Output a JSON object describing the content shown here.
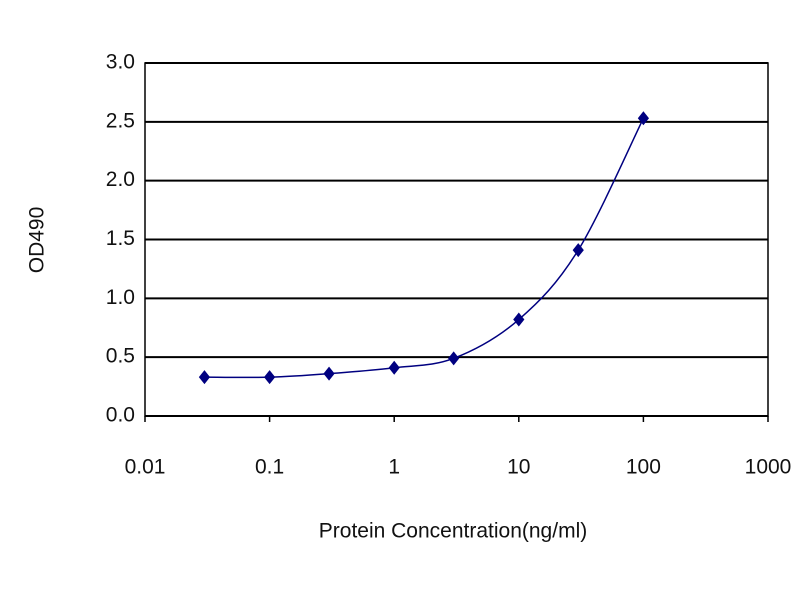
{
  "chart_data": {
    "type": "line",
    "x_label": "Protein Concentration(ng/ml)",
    "y_label": "OD490",
    "x": [
      0.03,
      0.1,
      0.3,
      1,
      3,
      10,
      30,
      100
    ],
    "series": [
      {
        "color": "#000080",
        "values": [
          0.33,
          0.33,
          0.36,
          0.41,
          0.49,
          0.82,
          1.41,
          2.53
        ]
      }
    ],
    "log_x": true,
    "xlim": [
      0.01,
      1000
    ],
    "xticks": [
      0.01,
      0.1,
      1,
      10,
      100,
      1000
    ],
    "ylim": [
      0,
      3
    ],
    "yticks": [
      {
        "value": 0,
        "label": "0.0"
      },
      0.5,
      {
        "value": 1,
        "label": "1.0"
      },
      1.5,
      {
        "value": 2,
        "label": "2.0"
      },
      2.5,
      {
        "value": 3,
        "label": "3.0"
      }
    ],
    "grid": true
  }
}
